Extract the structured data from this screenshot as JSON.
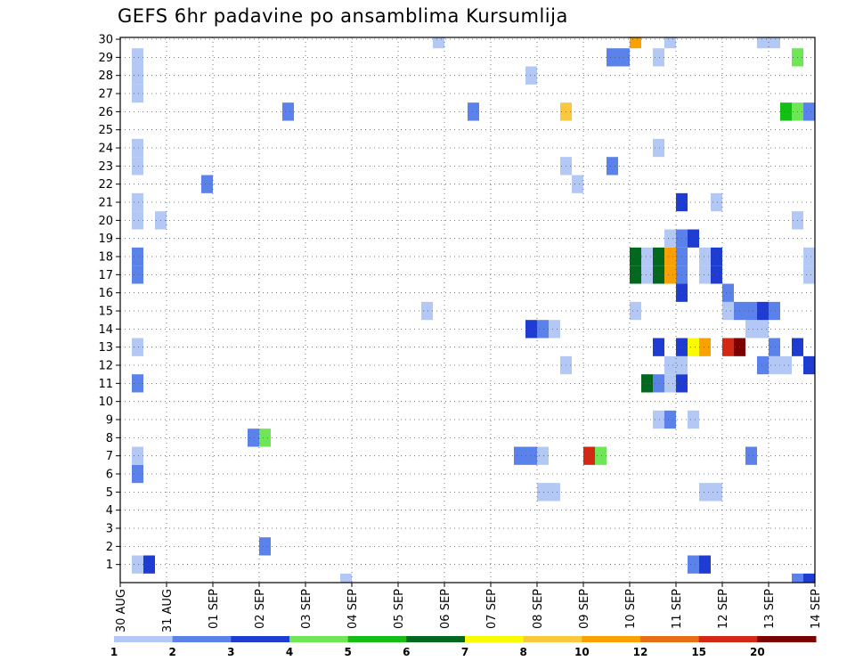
{
  "chart_data": {
    "type": "heatmap",
    "title": "GEFS 6hr padavine po ansamblima Kursumlija",
    "xlabel": "",
    "ylabel": "",
    "x_tick_labels": [
      "30 AUG",
      "31 AUG",
      "01 SEP",
      "02 SEP",
      "03 SEP",
      "04 SEP",
      "05 SEP",
      "06 SEP",
      "07 SEP",
      "08 SEP",
      "09 SEP",
      "10 SEP",
      "11 SEP",
      "12 SEP",
      "13 SEP",
      "14 SEP"
    ],
    "y_tick_labels": [
      "1",
      "2",
      "3",
      "4",
      "5",
      "6",
      "7",
      "8",
      "9",
      "10",
      "11",
      "12",
      "13",
      "14",
      "15",
      "16",
      "17",
      "18",
      "19",
      "20",
      "21",
      "22",
      "23",
      "24",
      "25",
      "26",
      "27",
      "28",
      "29",
      "30"
    ],
    "x_range_days": [
      0,
      15
    ],
    "y_range": [
      0,
      30
    ],
    "grid": true,
    "colorbar": {
      "placement": "bottom",
      "tick_labels": [
        "1",
        "2",
        "3",
        "4",
        "5",
        "6",
        "7",
        "8",
        "10",
        "12",
        "15",
        "20"
      ],
      "colors": [
        "#b4c8f5",
        "#5a82ea",
        "#1e3cd2",
        "#6ee655",
        "#14be14",
        "#00691e",
        "#fafa00",
        "#fac83c",
        "#faa000",
        "#e66e14",
        "#d22814",
        "#7d0000"
      ]
    },
    "cells": [
      {
        "member": 1,
        "t": 1,
        "c": 0
      },
      {
        "member": 1,
        "t": 2,
        "c": 2
      },
      {
        "member": 1,
        "t": 49,
        "c": 1
      },
      {
        "member": 1,
        "t": 50,
        "c": 2
      },
      {
        "member": 2,
        "t": 12,
        "c": 1
      },
      {
        "member": 5,
        "t": 36,
        "c": 0
      },
      {
        "member": 5,
        "t": 37,
        "c": 0
      },
      {
        "member": 5,
        "t": 50,
        "c": 0
      },
      {
        "member": 5,
        "t": 51,
        "c": 0
      },
      {
        "member": 6,
        "t": 1,
        "c": 1
      },
      {
        "member": 7,
        "t": 1,
        "c": 0
      },
      {
        "member": 7,
        "t": 34,
        "c": 1
      },
      {
        "member": 7,
        "t": 35,
        "c": 1
      },
      {
        "member": 7,
        "t": 36,
        "c": 0
      },
      {
        "member": 7,
        "t": 40,
        "c": 10
      },
      {
        "member": 7,
        "t": 41,
        "c": 3
      },
      {
        "member": 7,
        "t": 54,
        "c": 1
      },
      {
        "member": 8,
        "t": 11,
        "c": 1
      },
      {
        "member": 8,
        "t": 12,
        "c": 3
      },
      {
        "member": 9,
        "t": 46,
        "c": 0
      },
      {
        "member": 9,
        "t": 47,
        "c": 1
      },
      {
        "member": 9,
        "t": 49,
        "c": 0
      },
      {
        "member": 11,
        "t": 1,
        "c": 1
      },
      {
        "member": 11,
        "t": 45,
        "c": 5
      },
      {
        "member": 11,
        "t": 46,
        "c": 1
      },
      {
        "member": 11,
        "t": 47,
        "c": 0
      },
      {
        "member": 11,
        "t": 48,
        "c": 2
      },
      {
        "member": 12,
        "t": 38,
        "c": 0
      },
      {
        "member": 12,
        "t": 47,
        "c": 0
      },
      {
        "member": 12,
        "t": 48,
        "c": 0
      },
      {
        "member": 12,
        "t": 55,
        "c": 1
      },
      {
        "member": 12,
        "t": 56,
        "c": 0
      },
      {
        "member": 12,
        "t": 57,
        "c": 0
      },
      {
        "member": 12,
        "t": 59,
        "c": 2
      },
      {
        "member": 13,
        "t": 1,
        "c": 0
      },
      {
        "member": 13,
        "t": 46,
        "c": 2
      },
      {
        "member": 13,
        "t": 48,
        "c": 2
      },
      {
        "member": 13,
        "t": 49,
        "c": 6
      },
      {
        "member": 13,
        "t": 50,
        "c": 8
      },
      {
        "member": 13,
        "t": 52,
        "c": 10
      },
      {
        "member": 13,
        "t": 53,
        "c": 11
      },
      {
        "member": 13,
        "t": 56,
        "c": 1
      },
      {
        "member": 13,
        "t": 58,
        "c": 2
      },
      {
        "member": 14,
        "t": 35,
        "c": 2
      },
      {
        "member": 14,
        "t": 36,
        "c": 1
      },
      {
        "member": 14,
        "t": 37,
        "c": 0
      },
      {
        "member": 14,
        "t": 54,
        "c": 0
      },
      {
        "member": 14,
        "t": 55,
        "c": 0
      },
      {
        "member": 15,
        "t": 26,
        "c": 0
      },
      {
        "member": 15,
        "t": 44,
        "c": 0
      },
      {
        "member": 15,
        "t": 52,
        "c": 0
      },
      {
        "member": 15,
        "t": 53,
        "c": 1
      },
      {
        "member": 15,
        "t": 54,
        "c": 1
      },
      {
        "member": 15,
        "t": 55,
        "c": 2
      },
      {
        "member": 15,
        "t": 56,
        "c": 1
      },
      {
        "member": 16,
        "t": 48,
        "c": 2
      },
      {
        "member": 16,
        "t": 52,
        "c": 1
      },
      {
        "member": 17,
        "t": 1,
        "c": 1
      },
      {
        "member": 17,
        "t": 44,
        "c": 5
      },
      {
        "member": 17,
        "t": 45,
        "c": 0
      },
      {
        "member": 17,
        "t": 46,
        "c": 5
      },
      {
        "member": 17,
        "t": 47,
        "c": 8
      },
      {
        "member": 17,
        "t": 48,
        "c": 1
      },
      {
        "member": 17,
        "t": 50,
        "c": 0
      },
      {
        "member": 17,
        "t": 51,
        "c": 2
      },
      {
        "member": 17,
        "t": 59,
        "c": 0
      },
      {
        "member": 18,
        "t": 1,
        "c": 1
      },
      {
        "member": 18,
        "t": 44,
        "c": 5
      },
      {
        "member": 18,
        "t": 45,
        "c": 0
      },
      {
        "member": 18,
        "t": 46,
        "c": 5
      },
      {
        "member": 18,
        "t": 47,
        "c": 8
      },
      {
        "member": 18,
        "t": 48,
        "c": 1
      },
      {
        "member": 18,
        "t": 50,
        "c": 0
      },
      {
        "member": 18,
        "t": 51,
        "c": 2
      },
      {
        "member": 18,
        "t": 59,
        "c": 0
      },
      {
        "member": 19,
        "t": 47,
        "c": 0
      },
      {
        "member": 19,
        "t": 48,
        "c": 1
      },
      {
        "member": 19,
        "t": 49,
        "c": 2
      },
      {
        "member": 20,
        "t": 1,
        "c": 0
      },
      {
        "member": 20,
        "t": 3,
        "c": 0
      },
      {
        "member": 20,
        "t": 58,
        "c": 0
      },
      {
        "member": 21,
        "t": 1,
        "c": 0
      },
      {
        "member": 21,
        "t": 48,
        "c": 2
      },
      {
        "member": 21,
        "t": 51,
        "c": 0
      },
      {
        "member": 22,
        "t": 7,
        "c": 1
      },
      {
        "member": 22,
        "t": 39,
        "c": 0
      },
      {
        "member": 23,
        "t": 1,
        "c": 0
      },
      {
        "member": 23,
        "t": 38,
        "c": 0
      },
      {
        "member": 23,
        "t": 42,
        "c": 1
      },
      {
        "member": 24,
        "t": 1,
        "c": 0
      },
      {
        "member": 24,
        "t": 46,
        "c": 0
      },
      {
        "member": 26,
        "t": 14,
        "c": 1
      },
      {
        "member": 26,
        "t": 30,
        "c": 1
      },
      {
        "member": 26,
        "t": 38,
        "c": 7
      },
      {
        "member": 26,
        "t": 57,
        "c": 4
      },
      {
        "member": 26,
        "t": 58,
        "c": 3
      },
      {
        "member": 26,
        "t": 59,
        "c": 1
      },
      {
        "member": 27,
        "t": 1,
        "c": 0
      },
      {
        "member": 28,
        "t": 1,
        "c": 0
      },
      {
        "member": 28,
        "t": 35,
        "c": 0
      },
      {
        "member": 29,
        "t": 1,
        "c": 0
      },
      {
        "member": 29,
        "t": 42,
        "c": 1
      },
      {
        "member": 29,
        "t": 43,
        "c": 1
      },
      {
        "member": 29,
        "t": 46,
        "c": 0
      },
      {
        "member": 29,
        "t": 58,
        "c": 3
      },
      {
        "member": 30,
        "t": 27,
        "c": 0
      },
      {
        "member": 30,
        "t": 44,
        "c": 8
      },
      {
        "member": 30,
        "t": 47,
        "c": 0
      },
      {
        "member": 30,
        "t": 55,
        "c": 0
      },
      {
        "member": 30,
        "t": 56,
        "c": 0
      },
      {
        "member": 0,
        "t": 19,
        "c": 0
      },
      {
        "member": 0,
        "t": 58,
        "c": 1
      },
      {
        "member": 0,
        "t": 59,
        "c": 2
      }
    ]
  }
}
